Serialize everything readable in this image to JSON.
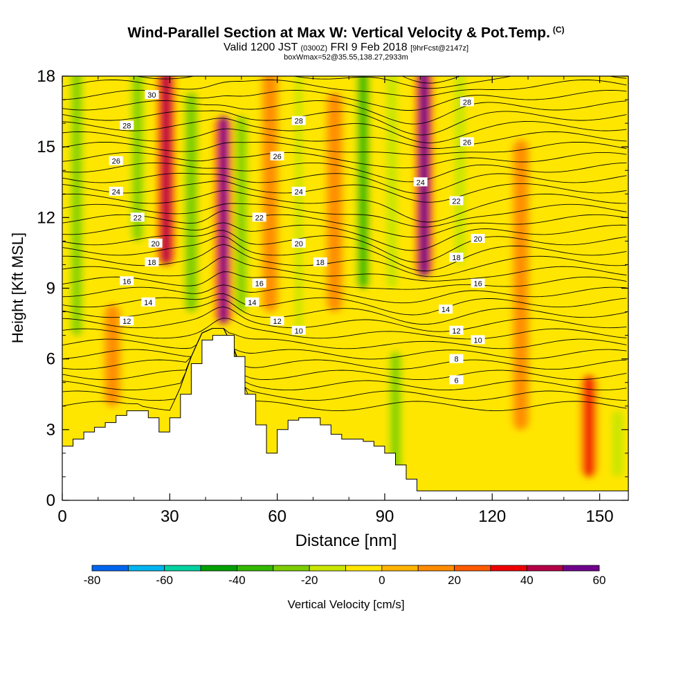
{
  "title": {
    "main": "Wind-Parallel Section at Max W: Vertical Velocity & Pot.Temp.",
    "copyright": "(C)",
    "valid_prefix": "Valid 1200 JST",
    "valid_utc": "(0300Z)",
    "valid_date": "FRI 9 Feb 2018",
    "valid_fcst": "[9hrFcst@2147z]",
    "box_info": "boxWmax=52@35.55,138.27,2933m"
  },
  "chart_data": {
    "type": "heatmap",
    "xlabel": "Distance [nm]",
    "ylabel": "Height [Kft MSL]",
    "xlim": [
      0,
      158
    ],
    "ylim": [
      0,
      18
    ],
    "x_ticks": [
      "0",
      "30",
      "60",
      "90",
      "120",
      "150"
    ],
    "y_ticks": [
      "0",
      "3",
      "6",
      "9",
      "12",
      "15",
      "18"
    ],
    "colorbar": {
      "label": "Vertical Velocity [cm/s]",
      "tick_labels": [
        "-80",
        "-60",
        "-40",
        "-20",
        "0",
        "20",
        "40",
        "60"
      ],
      "levels": [
        -80,
        -70,
        -60,
        -50,
        -40,
        -30,
        -20,
        -10,
        0,
        10,
        20,
        30,
        40,
        50,
        60
      ],
      "colors": [
        "#0a00e8",
        "#0066ee",
        "#00b4f0",
        "#00d2a0",
        "#00a000",
        "#33b800",
        "#7ccd00",
        "#c8e600",
        "#ffe600",
        "#ffb400",
        "#ff8c00",
        "#ff5a00",
        "#ee0000",
        "#b40046",
        "#6e008c",
        "#50009c"
      ]
    },
    "theta_contour_labels": [
      "30",
      "28",
      "26",
      "24",
      "22",
      "20",
      "18",
      "16",
      "14",
      "12",
      "10",
      "8",
      "6"
    ],
    "max_vertical_velocity_cm_s": 52,
    "terrain_profile": {
      "x": [
        0,
        3,
        6,
        9,
        12,
        15,
        18,
        21,
        24,
        27,
        30,
        33,
        36,
        39,
        42,
        45,
        48,
        51,
        54,
        57,
        60,
        63,
        66,
        69,
        72,
        75,
        78,
        81,
        84,
        87,
        90,
        93,
        96,
        99,
        102,
        105,
        108,
        111
      ],
      "height_kft": [
        2.3,
        2.6,
        2.9,
        3.1,
        3.3,
        3.6,
        3.8,
        3.8,
        3.5,
        2.9,
        3.5,
        4.5,
        5.8,
        6.8,
        7.0,
        7.0,
        6.1,
        4.5,
        3.2,
        2.0,
        3.0,
        3.4,
        3.5,
        3.5,
        3.2,
        2.8,
        2.6,
        2.6,
        2.5,
        2.3,
        2.0,
        1.5,
        0.9,
        0.4,
        0.4,
        0.4,
        0.4,
        0.4
      ]
    },
    "w_field_features": [
      {
        "x": 4,
        "z_min": 7,
        "z_max": 18,
        "w": -25
      },
      {
        "x": 14,
        "z_min": 4,
        "z_max": 8,
        "w": 15
      },
      {
        "x": 21,
        "z_min": 11,
        "z_max": 18,
        "w": -25
      },
      {
        "x": 29,
        "z_min": 10,
        "z_max": 18,
        "w": 45
      },
      {
        "x": 36,
        "z_min": 8,
        "z_max": 17,
        "w": -28
      },
      {
        "x": 45,
        "z_min": 7.5,
        "z_max": 16,
        "w": 50
      },
      {
        "x": 50,
        "z_min": 8,
        "z_max": 16,
        "w": -25
      },
      {
        "x": 58,
        "z_min": 8,
        "z_max": 18,
        "w": 15
      },
      {
        "x": 66,
        "z_min": 7,
        "z_max": 18,
        "w": -12
      },
      {
        "x": 76,
        "z_min": 8,
        "z_max": 17,
        "w": 18
      },
      {
        "x": 84,
        "z_min": 9,
        "z_max": 18,
        "w": -35
      },
      {
        "x": 92,
        "z_min": 9,
        "z_max": 18,
        "w": -15
      },
      {
        "x": 101,
        "z_min": 9.5,
        "z_max": 18,
        "w": 55
      },
      {
        "x": 111,
        "z_min": 10,
        "z_max": 18,
        "w": -15
      },
      {
        "x": 128,
        "z_min": 3,
        "z_max": 15,
        "w": 15
      },
      {
        "x": 147,
        "z_min": 1,
        "z_max": 5,
        "w": 30
      },
      {
        "x": 93,
        "z_min": 1,
        "z_max": 6,
        "w": -22
      },
      {
        "x": 82,
        "z_min": 2.5,
        "z_max": 7,
        "w": -10
      },
      {
        "x": 115,
        "z_min": 1,
        "z_max": 5,
        "w": -8
      },
      {
        "x": 155,
        "z_min": 1,
        "z_max": 3.5,
        "w": -18
      }
    ]
  }
}
